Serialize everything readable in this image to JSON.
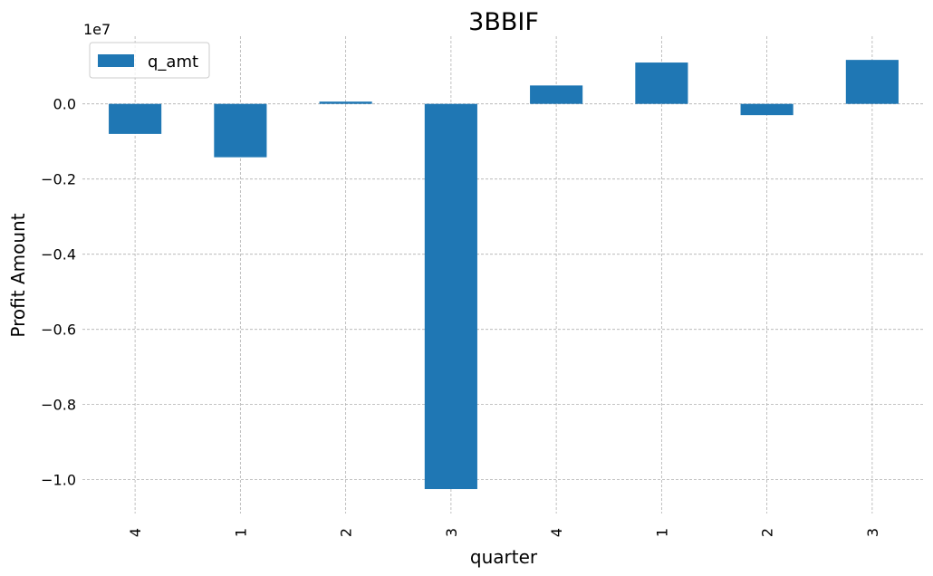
{
  "chart_data": {
    "type": "bar",
    "title": "3BBIF",
    "xlabel": "quarter",
    "ylabel": "Profit Amount",
    "offset_label": "1e7",
    "categories": [
      "4",
      "1",
      "2",
      "3",
      "4",
      "1",
      "2",
      "3"
    ],
    "series": [
      {
        "name": "q_amt",
        "color": "#1f77b4",
        "values": [
          -800000,
          -1420000,
          60000,
          -10250000,
          490000,
          1100000,
          -300000,
          1170000
        ]
      }
    ],
    "ylim": [
      -10900000,
      1800000
    ],
    "yticks": [
      0,
      -2000000,
      -4000000,
      -6000000,
      -8000000,
      -10000000
    ],
    "ytick_labels": [
      "0.0",
      "−0.2",
      "−0.4",
      "−0.6",
      "−0.8",
      "−1.0"
    ],
    "grid": true,
    "legend_position": "top-left"
  }
}
